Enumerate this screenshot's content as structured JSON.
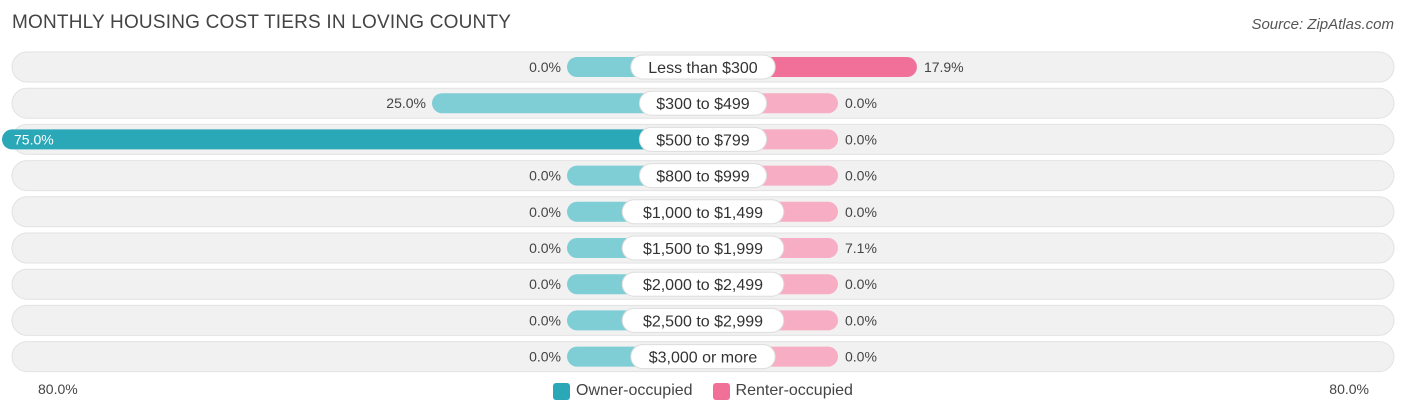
{
  "title": "MONTHLY HOUSING COST TIERS IN LOVING COUNTY",
  "source": "Source: ZipAtlas.com",
  "colors": {
    "owner": "#2aa8b8",
    "owner_light": "#7fcdd5",
    "renter": "#f0709a",
    "renter_light": "#f7adc4",
    "track": "#f1f1f1"
  },
  "legend": {
    "owner_label": "Owner-occupied",
    "renter_label": "Renter-occupied"
  },
  "axis": {
    "left_label": "80.0%",
    "right_label": "80.0%"
  },
  "chart_data": {
    "type": "bar",
    "orientation": "horizontal-diverging",
    "title": "MONTHLY HOUSING COST TIERS IN LOVING COUNTY",
    "xlim": [
      -80,
      80
    ],
    "categories": [
      "Less than $300",
      "$300 to $499",
      "$500 to $799",
      "$800 to $999",
      "$1,000 to $1,499",
      "$1,500 to $1,999",
      "$2,000 to $2,499",
      "$2,500 to $2,999",
      "$3,000 or more"
    ],
    "series": [
      {
        "name": "Owner-occupied",
        "values": [
          0.0,
          25.0,
          75.0,
          0.0,
          0.0,
          0.0,
          0.0,
          0.0,
          0.0
        ],
        "labels": [
          "0.0%",
          "25.0%",
          "75.0%",
          "0.0%",
          "0.0%",
          "0.0%",
          "0.0%",
          "0.0%",
          "0.0%"
        ]
      },
      {
        "name": "Renter-occupied",
        "values": [
          17.9,
          0.0,
          0.0,
          0.0,
          0.0,
          7.1,
          0.0,
          0.0,
          0.0
        ],
        "labels": [
          "17.9%",
          "0.0%",
          "0.0%",
          "0.0%",
          "0.0%",
          "7.1%",
          "0.0%",
          "0.0%",
          "0.0%"
        ]
      }
    ],
    "legend_position": "bottom-center"
  }
}
